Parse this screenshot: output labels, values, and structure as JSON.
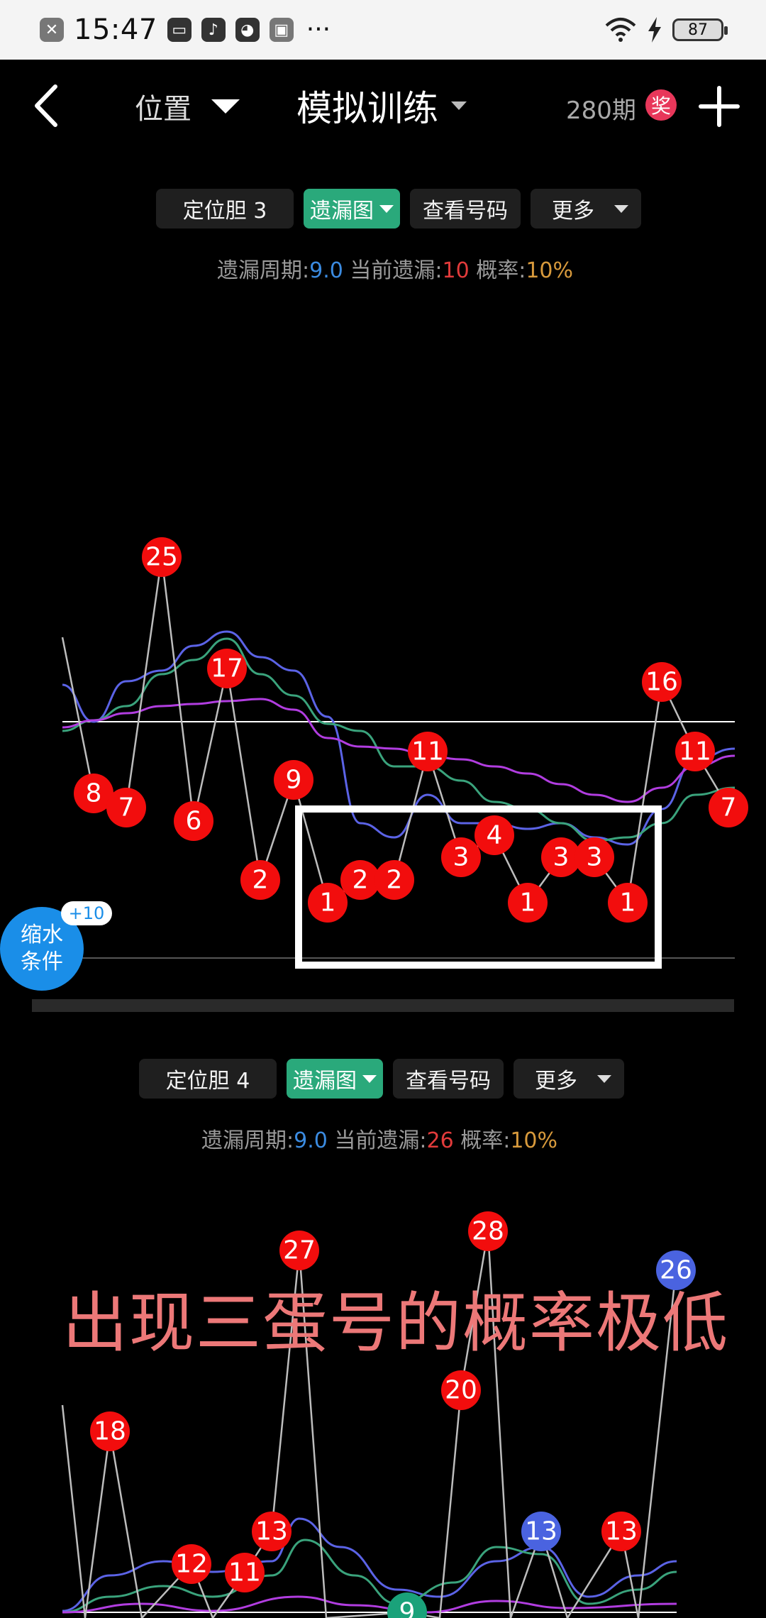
{
  "status_bar": {
    "time": "15:47",
    "battery": "87",
    "icons": [
      "close-notification-icon",
      "card-icon",
      "music-icon",
      "wechat-icon",
      "screenshot-icon",
      "more-dots-icon",
      "wifi-icon",
      "charging-icon",
      "battery-icon"
    ]
  },
  "header": {
    "position_label": "位置",
    "title": "模拟训练",
    "period": "280期",
    "prize_badge": "奖"
  },
  "panel1": {
    "buttons": {
      "position": "定位胆 3",
      "chart_type": "遗漏图",
      "view_numbers": "查看号码",
      "more": "更多"
    },
    "stats": {
      "cycle_label": "遗漏周期:",
      "cycle_value": "9.0",
      "current_label": " 当前遗漏:",
      "current_value": "10",
      "prob_label": " 概率:",
      "prob_value": "10%"
    }
  },
  "panel2": {
    "buttons": {
      "position": "定位胆 4",
      "chart_type": "遗漏图",
      "view_numbers": "查看号码",
      "more": "更多"
    },
    "stats": {
      "cycle_label": "遗漏周期:",
      "cycle_value": "9.0",
      "current_label": " 当前遗漏:",
      "current_value": "26",
      "prob_label": " 概率:",
      "prob_value": "10%"
    }
  },
  "fab": {
    "line1": "缩水",
    "line2": "条件",
    "badge": "+10"
  },
  "overlay_text": "出现三蛋号的概率极低",
  "colors": {
    "ball_red": "#f20d0d",
    "ball_blue": "#4a63e0",
    "ball_green": "#1aa27a",
    "accent_green": "#2aa97b",
    "blue_line": "#5b63e6",
    "green_line": "#3aa37c",
    "purple_line": "#b13de0"
  },
  "chart_data": [
    {
      "type": "line",
      "values": [
        8,
        7,
        25,
        6,
        17,
        2,
        9,
        1,
        2,
        2,
        11,
        3,
        4,
        1,
        3,
        3,
        1,
        16,
        11,
        7
      ]
    },
    {
      "type": "line",
      "values": [
        18,
        12,
        11,
        13,
        27,
        20,
        28,
        13,
        13,
        26,
        9
      ]
    }
  ]
}
